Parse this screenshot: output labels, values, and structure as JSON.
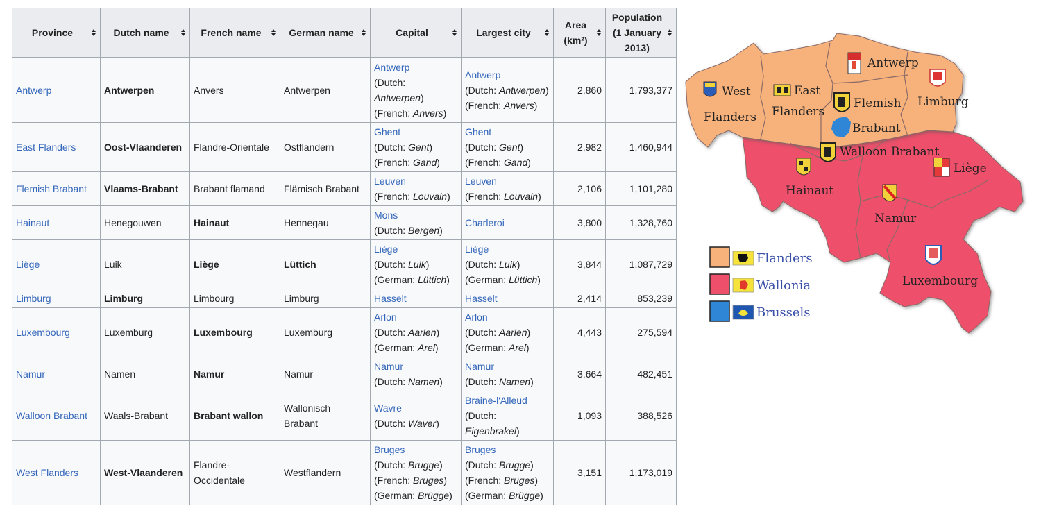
{
  "table": {
    "headers": [
      {
        "label": "Province"
      },
      {
        "label": "Dutch name"
      },
      {
        "label": "French name"
      },
      {
        "label": "German name"
      },
      {
        "label": "Capital"
      },
      {
        "label": "Largest city"
      },
      {
        "label": "Area (km²)"
      },
      {
        "label": "Population (1 January 2013)"
      }
    ],
    "rows": [
      {
        "province": "Antwerp",
        "dutch": "Antwerpen",
        "french": "Anvers",
        "german": "Antwerpen",
        "capital": {
          "city": "Antwerp",
          "lines": [
            [
              "(Dutch: ",
              "Antwerpen",
              ")"
            ],
            [
              "(French: ",
              "Anvers",
              ")"
            ]
          ]
        },
        "largest": {
          "city": "Antwerp",
          "lines": [
            [
              "(Dutch: ",
              "Antwerpen",
              ")"
            ],
            [
              "(French: ",
              "Anvers",
              ")"
            ]
          ]
        },
        "area": "2,860",
        "population": "1,793,377",
        "bold": "dutch"
      },
      {
        "province": "East Flanders",
        "dutch": "Oost-Vlaanderen",
        "french": "Flandre-Orientale",
        "german": "Ostflandern",
        "capital": {
          "city": "Ghent",
          "lines": [
            [
              "(Dutch: ",
              "Gent",
              ")"
            ],
            [
              "(French: ",
              "Gand",
              ")"
            ]
          ]
        },
        "largest": {
          "city": "Ghent",
          "lines": [
            [
              "(Dutch: ",
              "Gent",
              ")"
            ],
            [
              "(French: ",
              "Gand",
              ")"
            ]
          ]
        },
        "area": "2,982",
        "population": "1,460,944",
        "bold": "dutch"
      },
      {
        "province": "Flemish Brabant",
        "dutch": "Vlaams-Brabant",
        "french": "Brabant flamand",
        "german": "Flämisch Brabant",
        "capital": {
          "city": "Leuven",
          "lines": [
            [
              "(French: ",
              "Louvain",
              ")"
            ]
          ]
        },
        "largest": {
          "city": "Leuven",
          "lines": [
            [
              "(French: ",
              "Louvain",
              ")"
            ]
          ]
        },
        "area": "2,106",
        "population": "1,101,280",
        "bold": "dutch"
      },
      {
        "province": "Hainaut",
        "dutch": "Henegouwen",
        "french": "Hainaut",
        "german": "Hennegau",
        "capital": {
          "city": "Mons",
          "lines": [
            [
              "(Dutch: ",
              "Bergen",
              ")"
            ]
          ]
        },
        "largest": {
          "city": "Charleroi",
          "lines": []
        },
        "area": "3,800",
        "population": "1,328,760",
        "bold": "french"
      },
      {
        "province": "Liège",
        "dutch": "Luik",
        "french": "Liège",
        "german": "Lüttich",
        "capital": {
          "city": "Liège",
          "lines": [
            [
              "(Dutch: ",
              "Luik",
              ")"
            ],
            [
              "(German: ",
              "Lüttich",
              ")"
            ]
          ]
        },
        "largest": {
          "city": "Liège",
          "lines": [
            [
              "(Dutch: ",
              "Luik",
              ")"
            ],
            [
              "(German: ",
              "Lüttich",
              ")"
            ]
          ]
        },
        "area": "3,844",
        "population": "1,087,729",
        "bold": "french-german"
      },
      {
        "province": "Limburg",
        "dutch": "Limburg",
        "french": "Limbourg",
        "german": "Limburg",
        "capital": {
          "city": "Hasselt",
          "lines": []
        },
        "largest": {
          "city": "Hasselt",
          "lines": []
        },
        "area": "2,414",
        "population": "853,239",
        "bold": "dutch"
      },
      {
        "province": "Luxembourg",
        "dutch": "Luxemburg",
        "french": "Luxembourg",
        "german": "Luxemburg",
        "capital": {
          "city": "Arlon",
          "lines": [
            [
              "(Dutch: ",
              "Aarlen",
              ")"
            ],
            [
              "(German: ",
              "Arel",
              ")"
            ]
          ]
        },
        "largest": {
          "city": "Arlon",
          "lines": [
            [
              "(Dutch: ",
              "Aarlen",
              ")"
            ],
            [
              "(German: ",
              "Arel",
              ")"
            ]
          ]
        },
        "area": "4,443",
        "population": "275,594",
        "bold": "french"
      },
      {
        "province": "Namur",
        "dutch": "Namen",
        "french": "Namur",
        "german": "Namur",
        "capital": {
          "city": "Namur",
          "lines": [
            [
              "(Dutch: ",
              "Namen",
              ")"
            ]
          ]
        },
        "largest": {
          "city": "Namur",
          "lines": [
            [
              "(Dutch: ",
              "Namen",
              ")"
            ]
          ]
        },
        "area": "3,664",
        "population": "482,451",
        "bold": "french"
      },
      {
        "province": "Walloon Brabant",
        "dutch": "Waals-Brabant",
        "french": "Brabant wallon",
        "german": "Wallonisch Brabant",
        "capital": {
          "city": "Wavre",
          "lines": [
            [
              "(Dutch: ",
              "Waver",
              ")"
            ]
          ]
        },
        "largest": {
          "city": "Braine-l'Alleud",
          "lines": [
            [
              "(Dutch: ",
              "",
              ""
            ],
            [
              "",
              "Eigenbrakel",
              ")"
            ]
          ]
        },
        "area": "1,093",
        "population": "388,526",
        "bold": "french"
      },
      {
        "province": "West Flanders",
        "dutch": "West-Vlaanderen",
        "french": "Flandre-Occidentale",
        "german": "Westflandern",
        "capital": {
          "city": "Bruges",
          "lines": [
            [
              "(Dutch: ",
              "Brugge",
              ")"
            ],
            [
              "(French: ",
              "Bruges",
              ")"
            ],
            [
              "(German: ",
              "Brügge",
              ")"
            ]
          ]
        },
        "largest": {
          "city": "Bruges",
          "lines": [
            [
              "(Dutch: ",
              "Brugge",
              ")"
            ],
            [
              "(French: ",
              "Bruges",
              ")"
            ],
            [
              "(German: ",
              "Brügge",
              ")"
            ]
          ]
        },
        "area": "3,151",
        "population": "1,173,019",
        "bold": "dutch"
      }
    ]
  },
  "map": {
    "colors": {
      "flanders": "#f7b27b",
      "wallonia": "#ee4f6b",
      "brussels": "#2f86d6",
      "border": "#8a6a66"
    },
    "labels": {
      "antwerp": "Antwerp",
      "west_flanders_1": "West",
      "west_flanders_2": "Flanders",
      "east_flanders_1": "East",
      "east_flanders_2": "Flanders",
      "flemish_brabant_1": "Flemish",
      "flemish_brabant_2": "Brabant",
      "limburg": "Limburg",
      "walloon_brabant": "Walloon Brabant",
      "hainaut": "Hainaut",
      "liege": "Liège",
      "namur": "Namur",
      "luxembourg": "Luxembourg"
    },
    "legend": [
      {
        "label": "Flanders",
        "color": "#f7b27b",
        "icon": "flanders-lion-flag-icon"
      },
      {
        "label": "Wallonia",
        "color": "#ee4f6b",
        "icon": "wallonia-rooster-flag-icon"
      },
      {
        "label": "Brussels",
        "color": "#2f86d6",
        "icon": "brussels-iris-flag-icon"
      }
    ]
  }
}
